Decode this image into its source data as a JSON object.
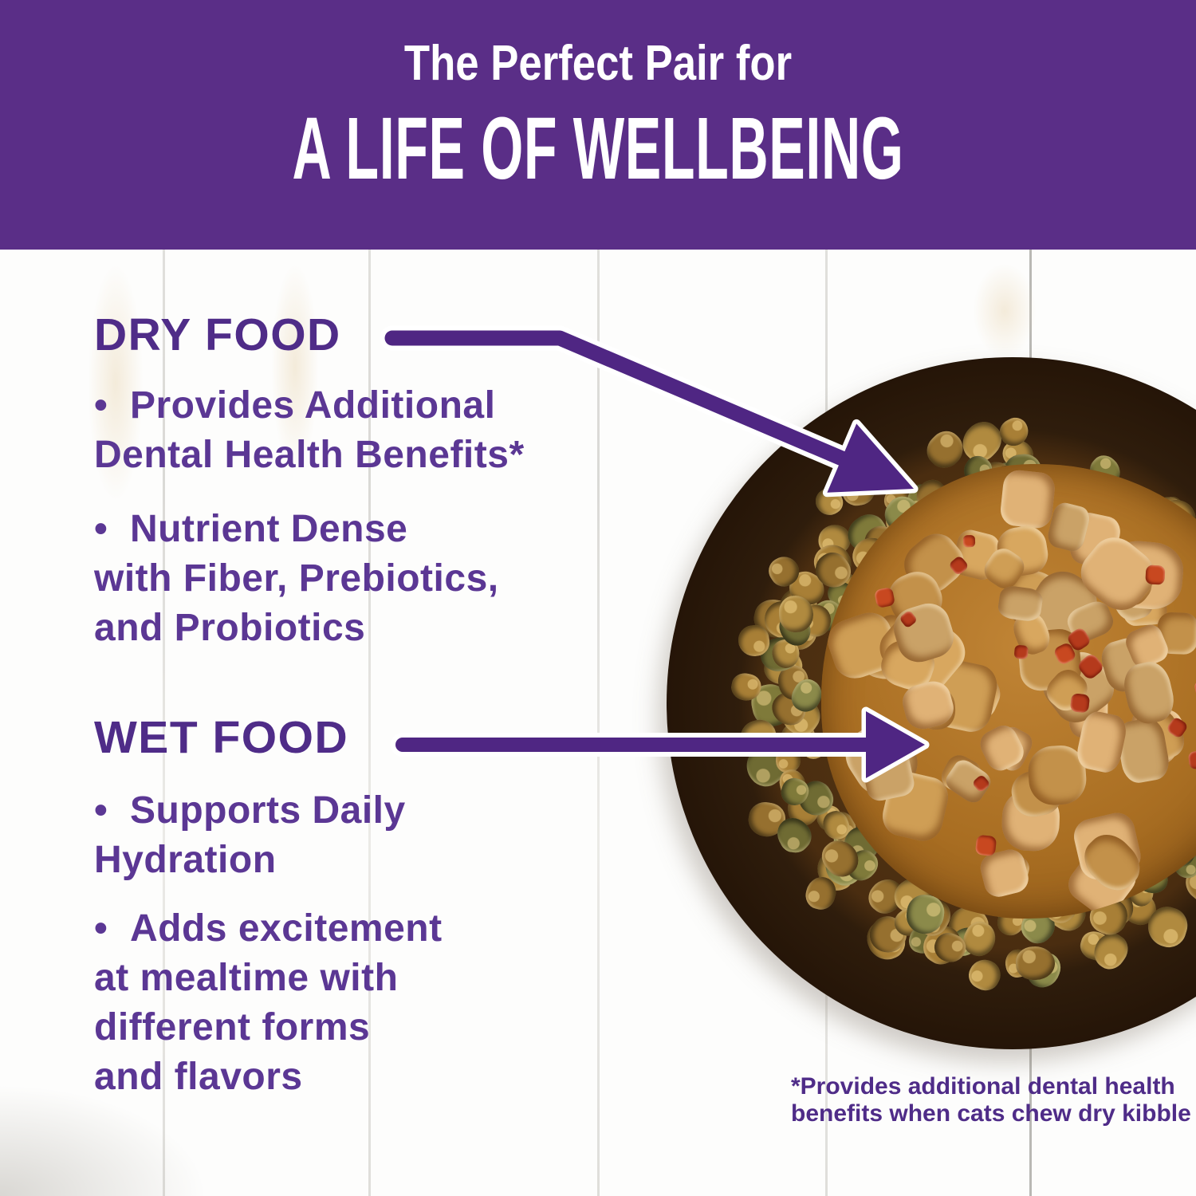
{
  "banner": {
    "line1": "The Perfect Pair for",
    "line2": "A LIFE OF WELLBEING"
  },
  "sections": [
    {
      "heading": "DRY FOOD",
      "bullets": [
        "•  Provides Additional\nDental Health Benefits*",
        "•  Nutrient Dense\nwith Fiber, Prebiotics,\nand Probiotics"
      ]
    },
    {
      "heading": "WET FOOD",
      "bullets": [
        "•  Supports Daily\nHydration",
        "•  Adds excitement\nat mealtime with\ndifferent forms\nand flavors"
      ]
    }
  ],
  "footnote": "*Provides additional dental health\nbenefits when cats chew dry kibble",
  "photo": {
    "description_labels": {
      "bowl": "stainless-steel-bowl",
      "outer_ring_food": "dry-kibble",
      "center_food": "wet-food-chunks-in-gravy"
    }
  },
  "colors": {
    "banner_purple": "#5A2E87",
    "heading_purple": "#4F2C88",
    "body_purple": "#5B3794",
    "arrow_purple": "#4F2683",
    "text_white": "#FFFFFF",
    "kibble_brown": "#9A7433",
    "wet_food_tan": "#C89450",
    "red_pepper_bits": "#C2441E",
    "steel_gray": "#D8D6D2"
  }
}
